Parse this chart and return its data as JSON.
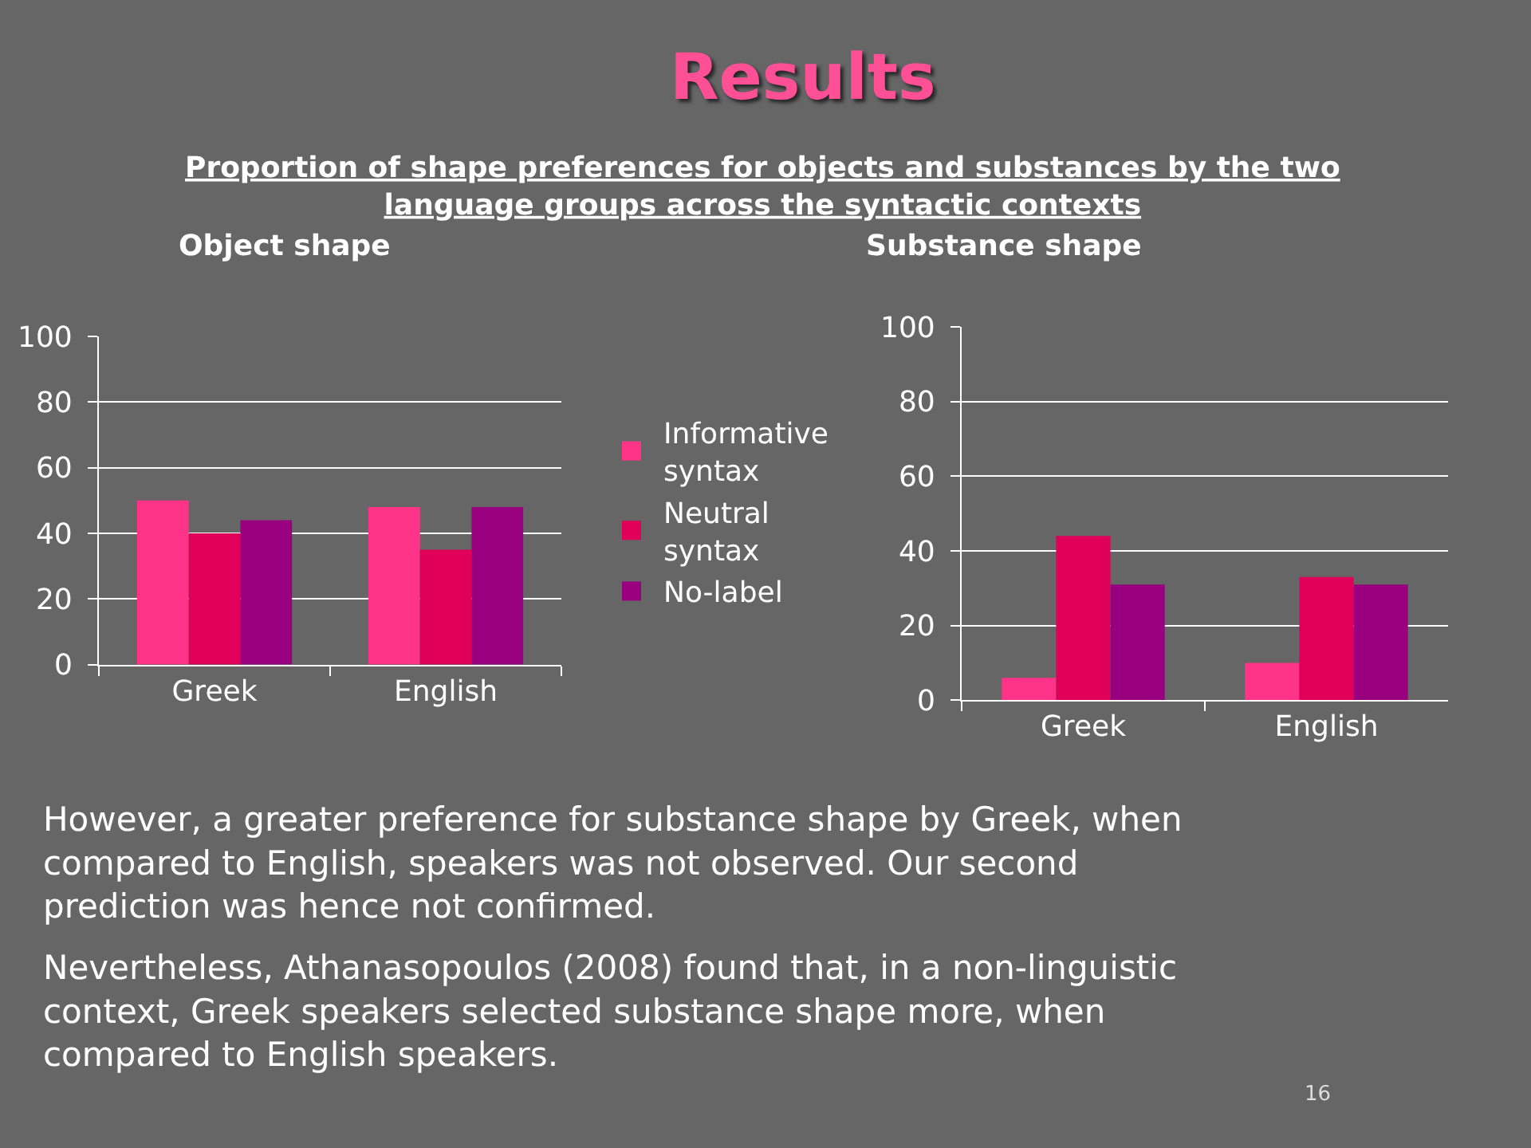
{
  "chart_data": [
    {
      "type": "bar",
      "title": "Object shape",
      "annotations": [
        "Results",
        "Proportion of shape preferences for objects and substances by the two language groups across the syntactic contexts",
        "However, a greater preference for substance shape by Greek, when compared to English, speakers was not observed. Our second prediction was hence not confirmed.",
        "Nevertheless, Athanasopoulos (2008) found that, in a non-linguistic context, Greek speakers selected substance shape more, when compared to English speakers.",
        "16"
      ],
      "categories": [
        "Greek",
        "English"
      ],
      "series": [
        {
          "name": "Informative syntax",
          "color": "#ff3388",
          "values": [
            50,
            48
          ]
        },
        {
          "name": "Neutral syntax",
          "color": "#e0005a",
          "values": [
            40,
            35
          ]
        },
        {
          "name": "No-label",
          "color": "#990080",
          "values": [
            44,
            48
          ]
        }
      ],
      "ylim": [
        0,
        100
      ],
      "yticks": [
        0,
        20,
        40,
        60,
        80,
        100
      ],
      "grid": "y",
      "legend": "right"
    },
    {
      "type": "bar",
      "title": "Substance shape",
      "categories": [
        "Greek",
        "English"
      ],
      "series": [
        {
          "color": "#ff3388",
          "values": [
            6,
            10
          ]
        },
        {
          "color": "#e0005a",
          "values": [
            44,
            33
          ]
        },
        {
          "color": "#990080",
          "values": [
            31,
            31
          ]
        }
      ],
      "ylim": [
        0,
        100
      ],
      "yticks": [
        0,
        20,
        40,
        60,
        80,
        100
      ],
      "grid": "y"
    }
  ]
}
